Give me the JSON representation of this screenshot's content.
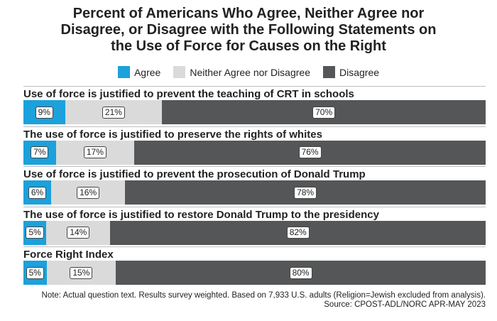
{
  "chart_data": {
    "type": "bar",
    "orientation": "horizontal",
    "stacked": true,
    "title": "Percent of Americans Who Agree, Neither Agree nor Disagree, or Disagree with the Following Statements on the Use of Force for Causes on the Right",
    "title_lines": [
      "Percent of Americans Who Agree, Neither Agree nor",
      "Disagree, or Disagree with the Following Statements on",
      "the Use of Force for Causes on the Right"
    ],
    "legend": [
      {
        "name": "Agree",
        "color": "#1ba1dc"
      },
      {
        "name": "Neither Agree nor Disagree",
        "color": "#dadada"
      },
      {
        "name": "Disagree",
        "color": "#555657"
      }
    ],
    "categories": [
      "Use of force is justified to prevent the teaching of CRT in schools",
      "The use of force is justified to preserve the rights of whites",
      "Use of force is justified to prevent the prosecution of Donald Trump",
      "The use of force is justified to restore Donald Trump to the presidency",
      "Force Right Index"
    ],
    "series": [
      {
        "name": "Agree",
        "values": [
          9,
          7,
          6,
          5,
          5
        ]
      },
      {
        "name": "Neither Agree nor Disagree",
        "values": [
          21,
          17,
          16,
          14,
          15
        ]
      },
      {
        "name": "Disagree",
        "values": [
          70,
          76,
          78,
          82,
          80
        ]
      }
    ],
    "value_suffix": "%",
    "xlim": [
      0,
      100
    ],
    "note": "Note: Actual question text. Results survey weighted. Based on 7,933 U.S. adults (Religion=Jewish excluded from analysis).",
    "source": "Source: CPOST-ADL/NORC APR-MAY 2023"
  }
}
